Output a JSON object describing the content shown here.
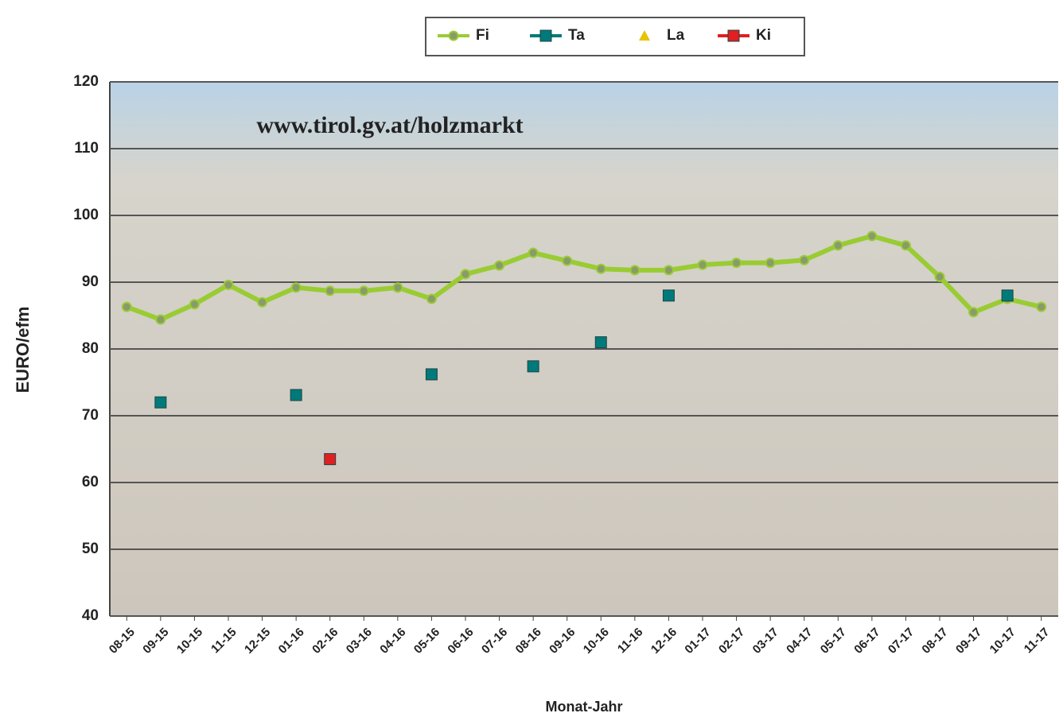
{
  "chart_data": {
    "type": "line",
    "annotation": "www.tirol.gv.at/holzmarkt",
    "y_label": "EURO/efm",
    "x_label": "Monat-Jahr",
    "categories": [
      "08-15",
      "09-15",
      "10-15",
      "11-15",
      "12-15",
      "01-16",
      "02-16",
      "03-16",
      "04-16",
      "05-16",
      "06-16",
      "07-16",
      "08-16",
      "09-16",
      "10-16",
      "11-16",
      "12-16",
      "01-17",
      "02-17",
      "03-17",
      "04-17",
      "05-17",
      "06-17",
      "07-17",
      "08-17",
      "09-17",
      "10-17",
      "11-17"
    ],
    "series": [
      {
        "name": "Fi",
        "color": "#99cc33",
        "marker": "circle",
        "values": [
          86.3,
          84.4,
          86.7,
          89.6,
          87.0,
          89.2,
          88.7,
          88.7,
          89.2,
          87.5,
          91.2,
          92.5,
          94.4,
          93.2,
          92.0,
          91.8,
          91.8,
          92.6,
          92.9,
          92.9,
          93.3,
          95.5,
          96.9,
          95.5,
          90.8,
          85.5,
          87.5,
          86.3
        ]
      },
      {
        "name": "Ta",
        "color": "#007a7a",
        "marker": "square",
        "values": [
          null,
          72.0,
          null,
          null,
          null,
          73.1,
          null,
          null,
          null,
          76.2,
          null,
          null,
          77.4,
          null,
          81.0,
          null,
          88.0,
          null,
          null,
          null,
          null,
          null,
          null,
          null,
          null,
          null,
          88.0,
          null
        ]
      },
      {
        "name": "La",
        "color": "#e6c200",
        "marker": "triangle",
        "values": [
          null,
          null,
          null,
          null,
          null,
          null,
          null,
          null,
          null,
          null,
          null,
          null,
          null,
          null,
          null,
          null,
          null,
          null,
          null,
          null,
          null,
          null,
          null,
          null,
          null,
          null,
          null,
          null
        ]
      },
      {
        "name": "Ki",
        "color": "#e02020",
        "marker": "square",
        "values": [
          null,
          null,
          null,
          null,
          null,
          null,
          63.5,
          null,
          null,
          null,
          null,
          null,
          null,
          null,
          null,
          null,
          null,
          null,
          null,
          null,
          null,
          null,
          null,
          null,
          null,
          null,
          null,
          null
        ]
      }
    ],
    "ylim": [
      40,
      120
    ],
    "yticks": [
      40,
      50,
      60,
      70,
      80,
      90,
      100,
      110,
      120
    ],
    "grid": true,
    "legend": "top"
  }
}
